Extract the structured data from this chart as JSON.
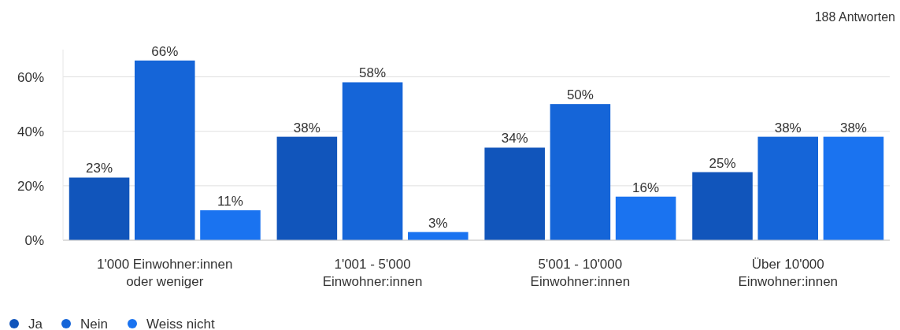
{
  "chart_data": {
    "type": "bar",
    "categories": [
      "1'000 Einwohner:innen oder weniger",
      "1'001 - 5'000 Einwohner:innen",
      "5'001 - 10'000 Einwohner:innen",
      "Über 10'000 Einwohner:innen"
    ],
    "series": [
      {
        "name": "Ja",
        "color": "#1155bb",
        "values": [
          23,
          38,
          34,
          25
        ],
        "value_labels": [
          "23%",
          "38%",
          "34%",
          "25%"
        ]
      },
      {
        "name": "Nein",
        "color": "#1565d8",
        "values": [
          66,
          58,
          50,
          38
        ],
        "value_labels": [
          "66%",
          "58%",
          "50%",
          "38%"
        ]
      },
      {
        "name": "Weiss nicht",
        "color": "#1a73f0",
        "values": [
          11,
          3,
          16,
          38
        ],
        "value_labels": [
          "11%",
          "3%",
          "16%",
          "38%"
        ]
      }
    ],
    "ylim": [
      0,
      70
    ],
    "yticks": [
      {
        "value": 0,
        "label": "0%"
      },
      {
        "value": 20,
        "label": "20%"
      },
      {
        "value": 40,
        "label": "40%"
      },
      {
        "value": 60,
        "label": "60%"
      }
    ],
    "grid": "y",
    "legend": "bottom left",
    "annotations": [
      "188 Antworten"
    ]
  }
}
